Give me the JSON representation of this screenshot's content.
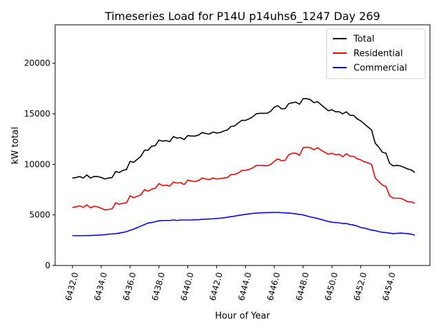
{
  "chart_data": {
    "type": "line",
    "title": "Timeseries Load for P14U p14uhs6_1247  Day 269",
    "xlabel": "Hour of Year",
    "ylabel": "kW total",
    "xlim": [
      6430.8,
      6456.8
    ],
    "ylim": [
      0,
      23800
    ],
    "xticks": [
      6432,
      6434,
      6436,
      6438,
      6440,
      6442,
      6444,
      6446,
      6448,
      6450,
      6452,
      6454
    ],
    "xtick_labels": [
      "6432.0",
      "6434.0",
      "6436.0",
      "6438.0",
      "6440.0",
      "6442.0",
      "6444.0",
      "6446.0",
      "6448.0",
      "6450.0",
      "6452.0",
      "6454.0"
    ],
    "yticks": [
      0,
      5000,
      10000,
      15000,
      20000
    ],
    "ytick_labels": [
      "0",
      "5000",
      "10000",
      "15000",
      "20000"
    ],
    "legend_position": "top-right",
    "x_start": 6432.0,
    "x_step": 0.25,
    "series": [
      {
        "name": "Total",
        "color": "#000000",
        "values": [
          8650,
          8700,
          8800,
          8650,
          8950,
          8650,
          8800,
          8800,
          8700,
          8550,
          8650,
          8700,
          9300,
          9200,
          9400,
          9500,
          10300,
          10200,
          10500,
          10800,
          11400,
          11400,
          11800,
          11850,
          12400,
          12300,
          12350,
          12250,
          12750,
          12600,
          12650,
          12450,
          12850,
          12800,
          12800,
          12900,
          13150,
          13050,
          13000,
          13200,
          13100,
          13150,
          13300,
          13400,
          13750,
          13800,
          14100,
          14350,
          14350,
          14500,
          14700,
          15000,
          15050,
          15050,
          15050,
          15250,
          15650,
          15800,
          15500,
          15500,
          16000,
          16100,
          16150,
          15950,
          16500,
          16500,
          16400,
          16100,
          16200,
          15900,
          15600,
          15300,
          15400,
          15200,
          15200,
          15000,
          15200,
          14850,
          14850,
          14500,
          14300,
          14000,
          13700,
          13400,
          12100,
          11700,
          11200,
          11100,
          10100,
          9850,
          9900,
          9850,
          9700,
          9550,
          9450,
          9200
        ]
      },
      {
        "name": "Residential",
        "color": "#ff0000",
        "values": [
          5750,
          5800,
          5900,
          5750,
          6000,
          5700,
          5850,
          5800,
          5650,
          5500,
          5550,
          5600,
          6200,
          6050,
          6150,
          6200,
          6900,
          6700,
          6850,
          7000,
          7500,
          7350,
          7550,
          7650,
          8100,
          7900,
          7950,
          7850,
          8250,
          8150,
          8200,
          8000,
          8450,
          8350,
          8300,
          8400,
          8650,
          8550,
          8500,
          8650,
          8550,
          8600,
          8650,
          8700,
          9000,
          9000,
          9150,
          9400,
          9400,
          9500,
          9650,
          9900,
          9900,
          9900,
          9850,
          10000,
          10300,
          10550,
          10350,
          10400,
          10950,
          11100,
          11100,
          10900,
          11650,
          11700,
          11650,
          11450,
          11650,
          11400,
          11200,
          11000,
          11100,
          10950,
          11000,
          10750,
          11050,
          10800,
          10800,
          10550,
          10450,
          10250,
          10150,
          10000,
          8650,
          8300,
          7950,
          7800,
          6900,
          6650,
          6650,
          6650,
          6500,
          6300,
          6300,
          6150
        ]
      },
      {
        "name": "Commercial",
        "color": "#0000ff",
        "values": [
          2950,
          2950,
          2950,
          2950,
          2960,
          2960,
          2980,
          3000,
          3020,
          3050,
          3100,
          3120,
          3150,
          3200,
          3270,
          3350,
          3480,
          3600,
          3750,
          3900,
          4050,
          4200,
          4250,
          4330,
          4420,
          4450,
          4450,
          4450,
          4500,
          4450,
          4500,
          4500,
          4500,
          4500,
          4520,
          4530,
          4570,
          4580,
          4600,
          4620,
          4650,
          4680,
          4720,
          4770,
          4830,
          4880,
          4950,
          5000,
          5050,
          5100,
          5150,
          5180,
          5200,
          5220,
          5230,
          5240,
          5250,
          5250,
          5220,
          5200,
          5180,
          5150,
          5100,
          5050,
          5000,
          4900,
          4800,
          4730,
          4650,
          4550,
          4450,
          4350,
          4280,
          4250,
          4220,
          4150,
          4150,
          4050,
          4000,
          3900,
          3750,
          3700,
          3600,
          3500,
          3450,
          3350,
          3280,
          3250,
          3200,
          3150,
          3180,
          3200,
          3180,
          3150,
          3100,
          3000
        ]
      }
    ]
  }
}
